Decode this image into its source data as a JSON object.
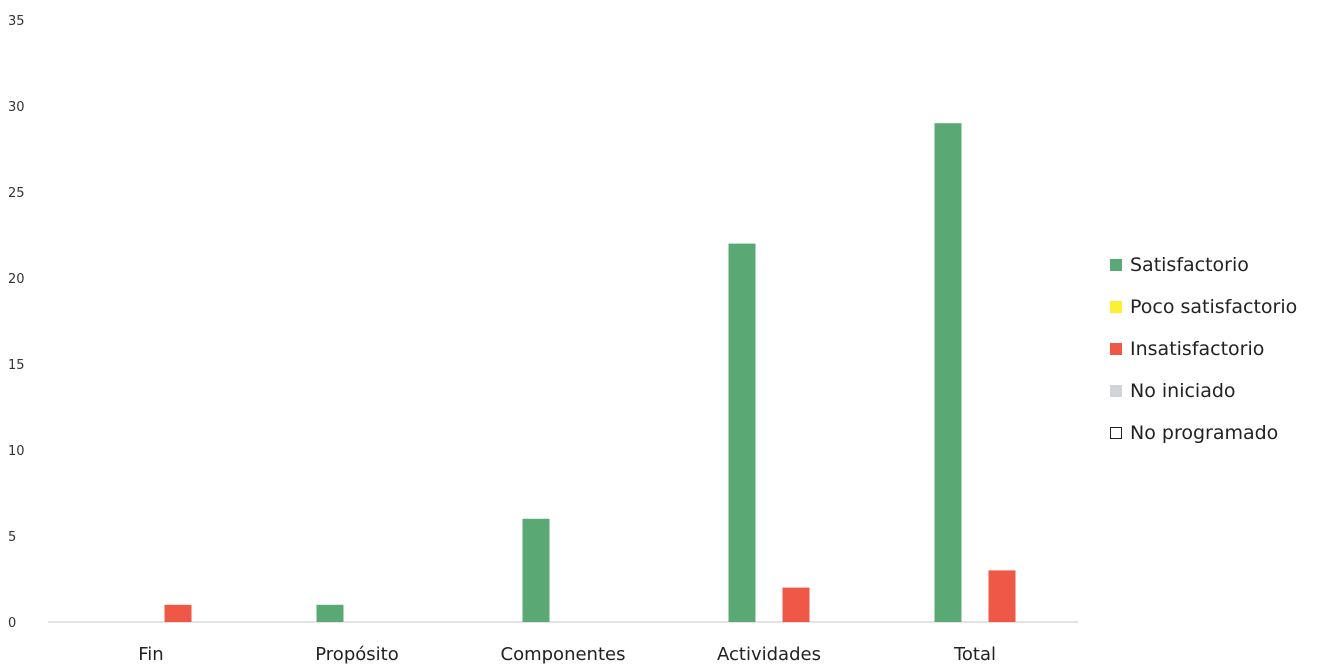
{
  "chart_data": {
    "type": "bar",
    "categories": [
      "Fin",
      "Propósito",
      "Componentes",
      "Actividades",
      "Total"
    ],
    "series": [
      {
        "name": "Satisfactorio",
        "color": "#5aa874",
        "values": [
          0,
          1,
          6,
          22,
          29
        ]
      },
      {
        "name": "Poco satisfactorio",
        "color": "#ffee33",
        "values": [
          0,
          0,
          0,
          0,
          0
        ]
      },
      {
        "name": "Insatisfactorio",
        "color": "#ef5747",
        "values": [
          1,
          0,
          0,
          2,
          3
        ]
      },
      {
        "name": "No iniciado",
        "color": "#d0d4d8",
        "values": [
          0,
          0,
          0,
          0,
          0
        ]
      },
      {
        "name": "No programado",
        "color": "#ffffff",
        "values": [
          0,
          0,
          0,
          0,
          0
        ]
      }
    ],
    "ylim": [
      0,
      35
    ],
    "yticks": [
      0,
      5,
      10,
      15,
      20,
      25,
      30,
      35
    ],
    "ytick_labels": [
      "0",
      "5",
      "10",
      "15",
      "20",
      "25",
      "30",
      "35"
    ],
    "grid": false,
    "legend_position": "right"
  }
}
